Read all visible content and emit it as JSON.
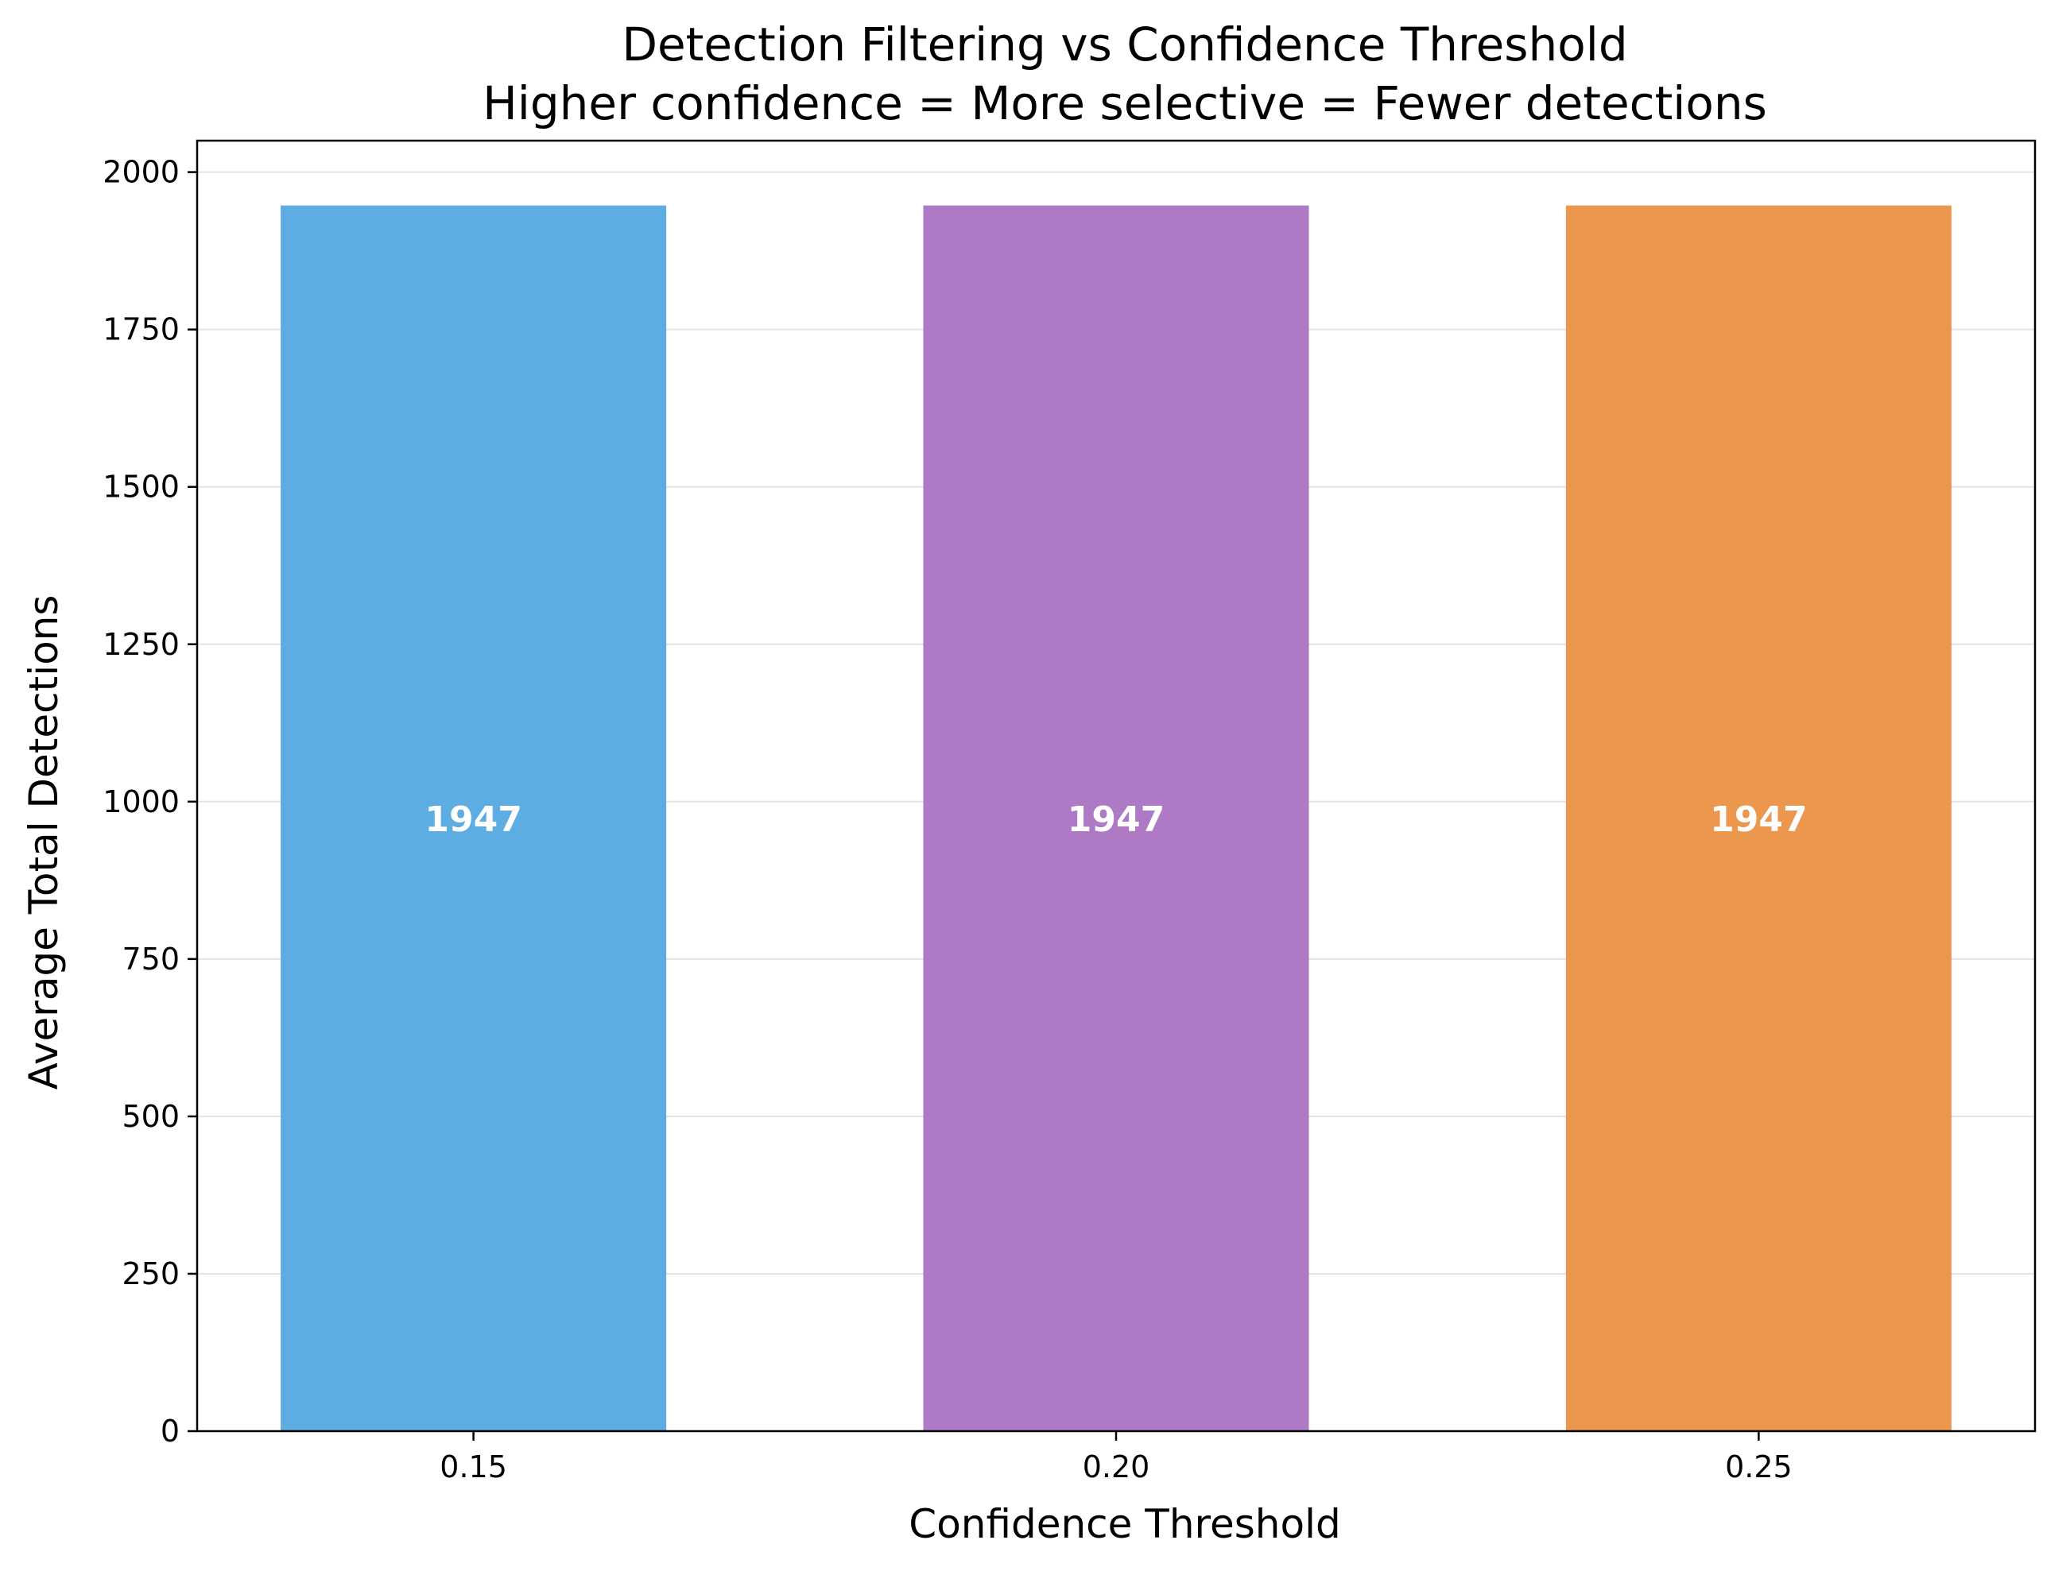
{
  "chart_data": {
    "type": "bar",
    "title": "Detection Filtering vs Confidence Threshold",
    "subtitle": "Higher confidence = More selective = Fewer detections",
    "xlabel": "Confidence Threshold",
    "ylabel": "Average Total Detections",
    "categories": [
      "0.15",
      "0.20",
      "0.25"
    ],
    "values": [
      1947,
      1947,
      1947
    ],
    "data_labels": [
      "1947",
      "1947",
      "1947"
    ],
    "colors": [
      "#5dade2",
      "#af7ac5",
      "#eb984e"
    ],
    "ylim": [
      0,
      2050
    ],
    "yticks": [
      0,
      250,
      500,
      750,
      1000,
      1250,
      1500,
      1750,
      2000
    ],
    "ytick_labels": [
      "0",
      "250",
      "500",
      "750",
      "1000",
      "1250",
      "1500",
      "1750",
      "2000"
    ],
    "grid": "y",
    "legend": "none"
  }
}
